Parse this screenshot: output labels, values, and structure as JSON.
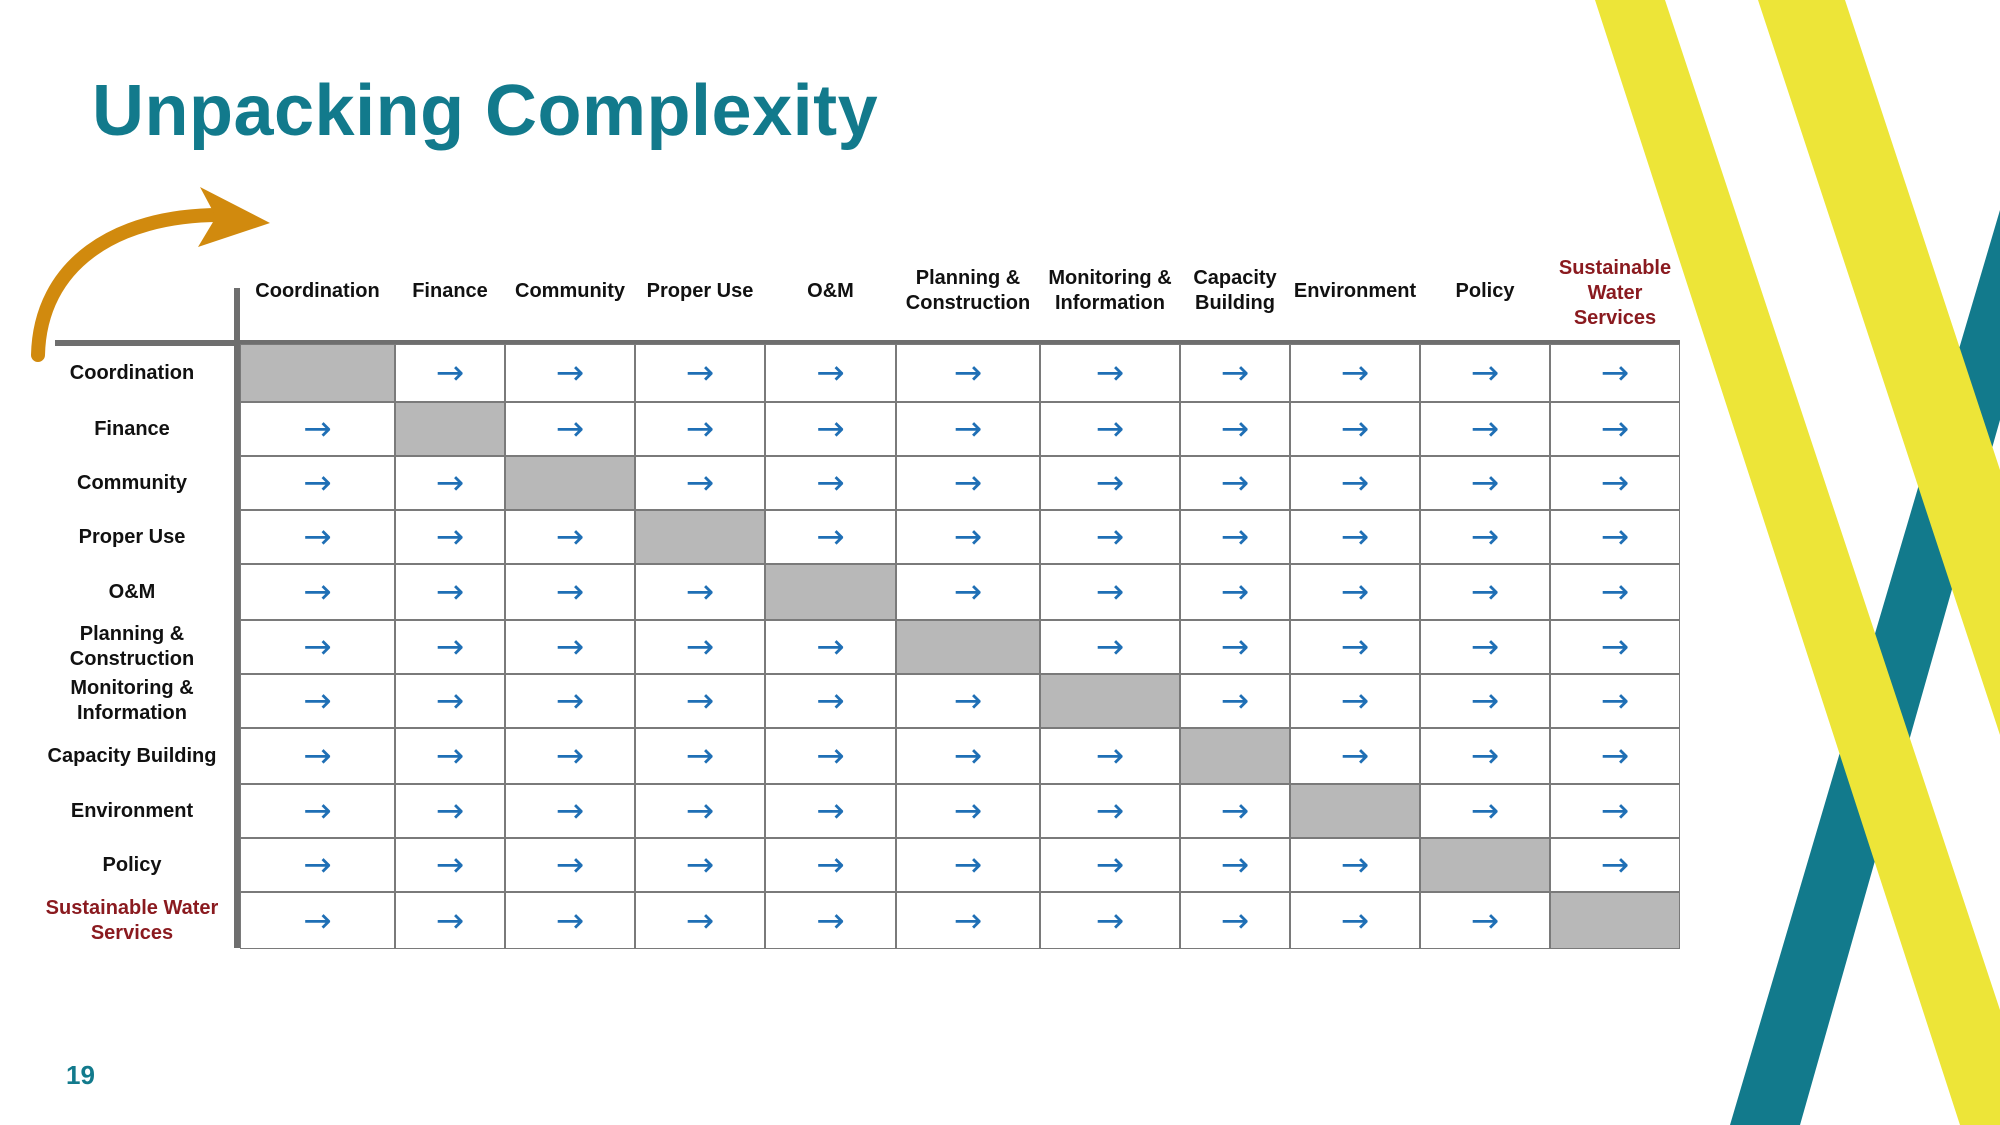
{
  "slide": {
    "title": "Unpacking Complexity",
    "page_number": "19"
  },
  "colors": {
    "title": "#127a8c",
    "teal_stripe": "#127a8c",
    "yellow_stripe": "#ede538",
    "curved_arrow": "#d18a0e",
    "arrow_glyph": "#1f6fb5",
    "diagonal_cell": "#b8b8b8",
    "highlight_label": "#8a1a1f"
  },
  "matrix": {
    "arrow_symbol": "→",
    "columns": [
      "Coordination",
      "Finance",
      "Community",
      "Proper Use",
      "O&M",
      "Planning & Construction",
      "Monitoring & Information",
      "Capacity Building",
      "Environment",
      "Policy",
      "Sustainable Water Services"
    ],
    "rows": [
      "Coordination",
      "Finance",
      "Community",
      "Proper Use",
      "O&M",
      "Planning & Construction",
      "Monitoring & Information",
      "Capacity Building",
      "Environment",
      "Policy",
      "Sustainable Water Services"
    ],
    "highlighted_label": "Sustainable Water Services"
  },
  "icons": {
    "curved_arrow": "curved-arrow-icon",
    "cell_arrow": "right-arrow-icon"
  }
}
